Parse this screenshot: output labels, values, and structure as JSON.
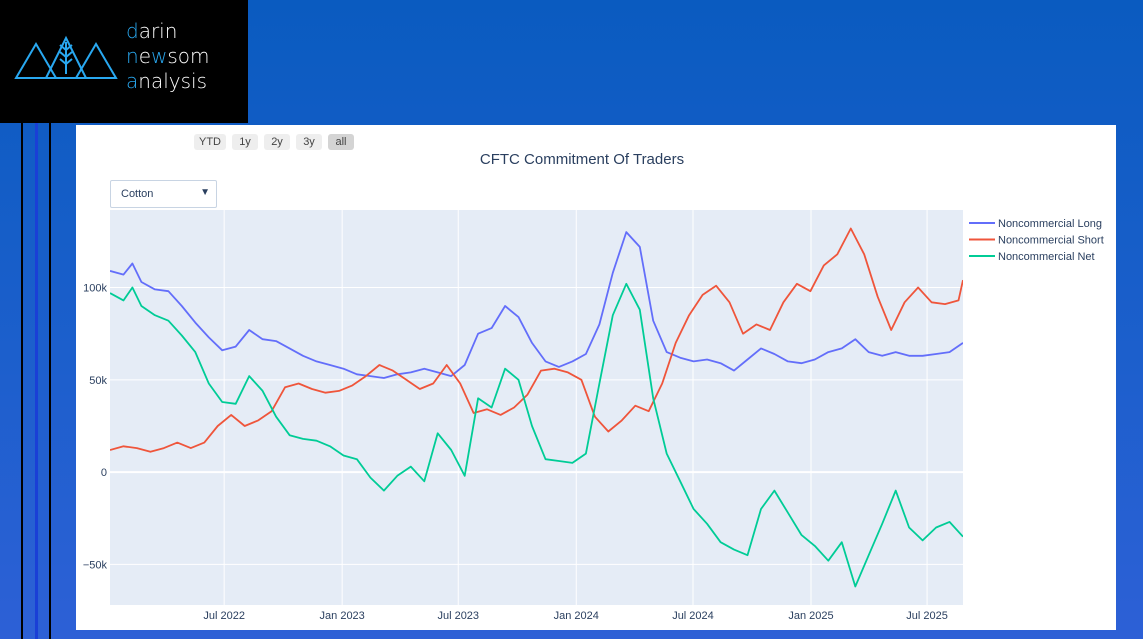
{
  "brand": {
    "lines": [
      {
        "first": "d",
        "rest": "arin"
      },
      {
        "first": "n",
        "mid": "e",
        "hl2": "w",
        "rest": "som"
      },
      {
        "first": "a",
        "rest": "nalysis"
      }
    ],
    "accent_color": "#29a8f0"
  },
  "range_buttons": [
    "YTD",
    "1y",
    "2y",
    "3y",
    "all"
  ],
  "active_range": "all",
  "dropdown": {
    "selected": "Cotton"
  },
  "colors": {
    "long": "#636efa",
    "short": "#ef553b",
    "net": "#00cc96",
    "plot_bg": "#e5ecf6"
  },
  "chart_data": {
    "type": "line",
    "title": "CFTC Commitment Of Traders",
    "xlabel": "",
    "ylabel": "",
    "x_range": [
      "2022-01-04",
      "2025-08-26"
    ],
    "ylim": [
      -72000,
      142000
    ],
    "y_ticks": [
      {
        "value": -50000,
        "label": "−50k"
      },
      {
        "value": 0,
        "label": "0"
      },
      {
        "value": 50000,
        "label": "50k"
      },
      {
        "value": 100000,
        "label": "100k"
      }
    ],
    "x_ticks": [
      {
        "date": "2022-07-01",
        "label": "Jul 2022"
      },
      {
        "date": "2023-01-01",
        "label": "Jan 2023"
      },
      {
        "date": "2023-07-01",
        "label": "Jul 2023"
      },
      {
        "date": "2024-01-01",
        "label": "Jan 2024"
      },
      {
        "date": "2024-07-01",
        "label": "Jul 2024"
      },
      {
        "date": "2025-01-01",
        "label": "Jan 2025"
      },
      {
        "date": "2025-07-01",
        "label": "Jul 2025"
      }
    ],
    "legend_position": "top-right",
    "grid": true,
    "series": [
      {
        "name": "Noncommercial Long",
        "color": "#636efa",
        "points": [
          [
            "2022-01-04",
            109000
          ],
          [
            "2022-01-25",
            107000
          ],
          [
            "2022-02-08",
            113000
          ],
          [
            "2022-02-22",
            103000
          ],
          [
            "2022-03-15",
            99000
          ],
          [
            "2022-04-05",
            98000
          ],
          [
            "2022-04-26",
            90000
          ],
          [
            "2022-05-17",
            81000
          ],
          [
            "2022-06-07",
            73000
          ],
          [
            "2022-06-28",
            66000
          ],
          [
            "2022-07-19",
            68000
          ],
          [
            "2022-08-09",
            77000
          ],
          [
            "2022-08-30",
            72000
          ],
          [
            "2022-09-20",
            71000
          ],
          [
            "2022-10-11",
            67000
          ],
          [
            "2022-11-01",
            63000
          ],
          [
            "2022-11-22",
            60000
          ],
          [
            "2022-12-13",
            58000
          ],
          [
            "2023-01-03",
            56000
          ],
          [
            "2023-01-24",
            53000
          ],
          [
            "2023-02-14",
            52000
          ],
          [
            "2023-03-07",
            51000
          ],
          [
            "2023-03-28",
            53000
          ],
          [
            "2023-04-18",
            54000
          ],
          [
            "2023-05-09",
            56000
          ],
          [
            "2023-05-30",
            54000
          ],
          [
            "2023-06-20",
            52000
          ],
          [
            "2023-07-11",
            58000
          ],
          [
            "2023-08-01",
            75000
          ],
          [
            "2023-08-22",
            78000
          ],
          [
            "2023-09-12",
            90000
          ],
          [
            "2023-10-03",
            84000
          ],
          [
            "2023-10-24",
            70000
          ],
          [
            "2023-11-14",
            60000
          ],
          [
            "2023-12-05",
            57000
          ],
          [
            "2023-12-26",
            60000
          ],
          [
            "2024-01-16",
            64000
          ],
          [
            "2024-02-06",
            80000
          ],
          [
            "2024-02-27",
            108000
          ],
          [
            "2024-03-19",
            130000
          ],
          [
            "2024-04-09",
            122000
          ],
          [
            "2024-04-30",
            82000
          ],
          [
            "2024-05-21",
            65000
          ],
          [
            "2024-06-11",
            62000
          ],
          [
            "2024-07-02",
            60000
          ],
          [
            "2024-07-23",
            61000
          ],
          [
            "2024-08-13",
            59000
          ],
          [
            "2024-09-03",
            55000
          ],
          [
            "2024-09-24",
            61000
          ],
          [
            "2024-10-15",
            67000
          ],
          [
            "2024-11-05",
            64000
          ],
          [
            "2024-11-26",
            60000
          ],
          [
            "2024-12-17",
            59000
          ],
          [
            "2025-01-07",
            61000
          ],
          [
            "2025-01-28",
            65000
          ],
          [
            "2025-02-18",
            67000
          ],
          [
            "2025-03-11",
            72000
          ],
          [
            "2025-04-01",
            65000
          ],
          [
            "2025-04-22",
            63000
          ],
          [
            "2025-05-13",
            65000
          ],
          [
            "2025-06-03",
            63000
          ],
          [
            "2025-06-24",
            63000
          ],
          [
            "2025-07-15",
            64000
          ],
          [
            "2025-08-05",
            65000
          ],
          [
            "2025-08-26",
            70000
          ]
        ]
      },
      {
        "name": "Noncommercial Short",
        "color": "#ef553b",
        "points": [
          [
            "2022-01-04",
            12000
          ],
          [
            "2022-01-25",
            14000
          ],
          [
            "2022-02-15",
            13000
          ],
          [
            "2022-03-08",
            11000
          ],
          [
            "2022-03-29",
            13000
          ],
          [
            "2022-04-19",
            16000
          ],
          [
            "2022-05-10",
            13000
          ],
          [
            "2022-05-31",
            16000
          ],
          [
            "2022-06-21",
            25000
          ],
          [
            "2022-07-12",
            31000
          ],
          [
            "2022-08-02",
            25000
          ],
          [
            "2022-08-23",
            28000
          ],
          [
            "2022-09-13",
            33000
          ],
          [
            "2022-10-04",
            46000
          ],
          [
            "2022-10-25",
            48000
          ],
          [
            "2022-11-15",
            45000
          ],
          [
            "2022-12-06",
            43000
          ],
          [
            "2022-12-27",
            44000
          ],
          [
            "2023-01-17",
            47000
          ],
          [
            "2023-02-07",
            52000
          ],
          [
            "2023-02-28",
            58000
          ],
          [
            "2023-03-21",
            55000
          ],
          [
            "2023-04-11",
            50000
          ],
          [
            "2023-05-02",
            45000
          ],
          [
            "2023-05-23",
            48000
          ],
          [
            "2023-06-13",
            58000
          ],
          [
            "2023-07-04",
            48000
          ],
          [
            "2023-07-25",
            32000
          ],
          [
            "2023-08-15",
            34000
          ],
          [
            "2023-09-05",
            31000
          ],
          [
            "2023-09-26",
            35000
          ],
          [
            "2023-10-17",
            42000
          ],
          [
            "2023-11-07",
            55000
          ],
          [
            "2023-11-28",
            56000
          ],
          [
            "2023-12-19",
            54000
          ],
          [
            "2024-01-09",
            50000
          ],
          [
            "2024-01-30",
            30000
          ],
          [
            "2024-02-20",
            22000
          ],
          [
            "2024-03-12",
            28000
          ],
          [
            "2024-04-02",
            36000
          ],
          [
            "2024-04-23",
            33000
          ],
          [
            "2024-05-14",
            48000
          ],
          [
            "2024-06-04",
            70000
          ],
          [
            "2024-06-25",
            85000
          ],
          [
            "2024-07-16",
            96000
          ],
          [
            "2024-08-06",
            101000
          ],
          [
            "2024-08-27",
            92000
          ],
          [
            "2024-09-17",
            75000
          ],
          [
            "2024-10-08",
            80000
          ],
          [
            "2024-10-29",
            77000
          ],
          [
            "2024-11-19",
            92000
          ],
          [
            "2024-12-10",
            102000
          ],
          [
            "2024-12-31",
            98000
          ],
          [
            "2025-01-21",
            112000
          ],
          [
            "2025-02-11",
            118000
          ],
          [
            "2025-03-04",
            132000
          ],
          [
            "2025-03-25",
            118000
          ],
          [
            "2025-04-15",
            95000
          ],
          [
            "2025-05-06",
            77000
          ],
          [
            "2025-05-27",
            92000
          ],
          [
            "2025-06-17",
            100000
          ],
          [
            "2025-07-08",
            92000
          ],
          [
            "2025-07-29",
            91000
          ],
          [
            "2025-08-19",
            93000
          ],
          [
            "2025-08-26",
            104000
          ]
        ]
      },
      {
        "name": "Noncommercial Net",
        "color": "#00cc96",
        "points": [
          [
            "2022-01-04",
            97000
          ],
          [
            "2022-01-25",
            93000
          ],
          [
            "2022-02-08",
            100000
          ],
          [
            "2022-02-22",
            90000
          ],
          [
            "2022-03-15",
            85000
          ],
          [
            "2022-04-05",
            82000
          ],
          [
            "2022-04-26",
            74000
          ],
          [
            "2022-05-17",
            65000
          ],
          [
            "2022-06-07",
            48000
          ],
          [
            "2022-06-28",
            38000
          ],
          [
            "2022-07-19",
            37000
          ],
          [
            "2022-08-09",
            52000
          ],
          [
            "2022-08-30",
            44000
          ],
          [
            "2022-09-20",
            30000
          ],
          [
            "2022-10-11",
            20000
          ],
          [
            "2022-11-01",
            18000
          ],
          [
            "2022-11-22",
            17000
          ],
          [
            "2022-12-13",
            14000
          ],
          [
            "2023-01-03",
            9000
          ],
          [
            "2023-01-24",
            7000
          ],
          [
            "2023-02-14",
            -3000
          ],
          [
            "2023-03-07",
            -10000
          ],
          [
            "2023-03-28",
            -2000
          ],
          [
            "2023-04-18",
            3000
          ],
          [
            "2023-05-09",
            -5000
          ],
          [
            "2023-05-30",
            21000
          ],
          [
            "2023-06-20",
            12000
          ],
          [
            "2023-07-11",
            -2000
          ],
          [
            "2023-08-01",
            40000
          ],
          [
            "2023-08-22",
            35000
          ],
          [
            "2023-09-12",
            56000
          ],
          [
            "2023-10-03",
            50000
          ],
          [
            "2023-10-24",
            25000
          ],
          [
            "2023-11-14",
            7000
          ],
          [
            "2023-12-05",
            6000
          ],
          [
            "2023-12-26",
            5000
          ],
          [
            "2024-01-16",
            10000
          ],
          [
            "2024-02-06",
            48000
          ],
          [
            "2024-02-27",
            85000
          ],
          [
            "2024-03-19",
            102000
          ],
          [
            "2024-04-09",
            88000
          ],
          [
            "2024-04-30",
            40000
          ],
          [
            "2024-05-21",
            10000
          ],
          [
            "2024-06-11",
            -5000
          ],
          [
            "2024-07-02",
            -20000
          ],
          [
            "2024-07-23",
            -28000
          ],
          [
            "2024-08-13",
            -38000
          ],
          [
            "2024-09-03",
            -42000
          ],
          [
            "2024-09-24",
            -45000
          ],
          [
            "2024-10-15",
            -20000
          ],
          [
            "2024-11-05",
            -10000
          ],
          [
            "2024-11-26",
            -22000
          ],
          [
            "2024-12-17",
            -34000
          ],
          [
            "2025-01-07",
            -40000
          ],
          [
            "2025-01-28",
            -48000
          ],
          [
            "2025-02-18",
            -38000
          ],
          [
            "2025-03-11",
            -62000
          ],
          [
            "2025-04-01",
            -45000
          ],
          [
            "2025-04-22",
            -28000
          ],
          [
            "2025-05-13",
            -10000
          ],
          [
            "2025-06-03",
            -30000
          ],
          [
            "2025-06-24",
            -37000
          ],
          [
            "2025-07-15",
            -30000
          ],
          [
            "2025-08-05",
            -27000
          ],
          [
            "2025-08-26",
            -35000
          ]
        ]
      }
    ]
  }
}
